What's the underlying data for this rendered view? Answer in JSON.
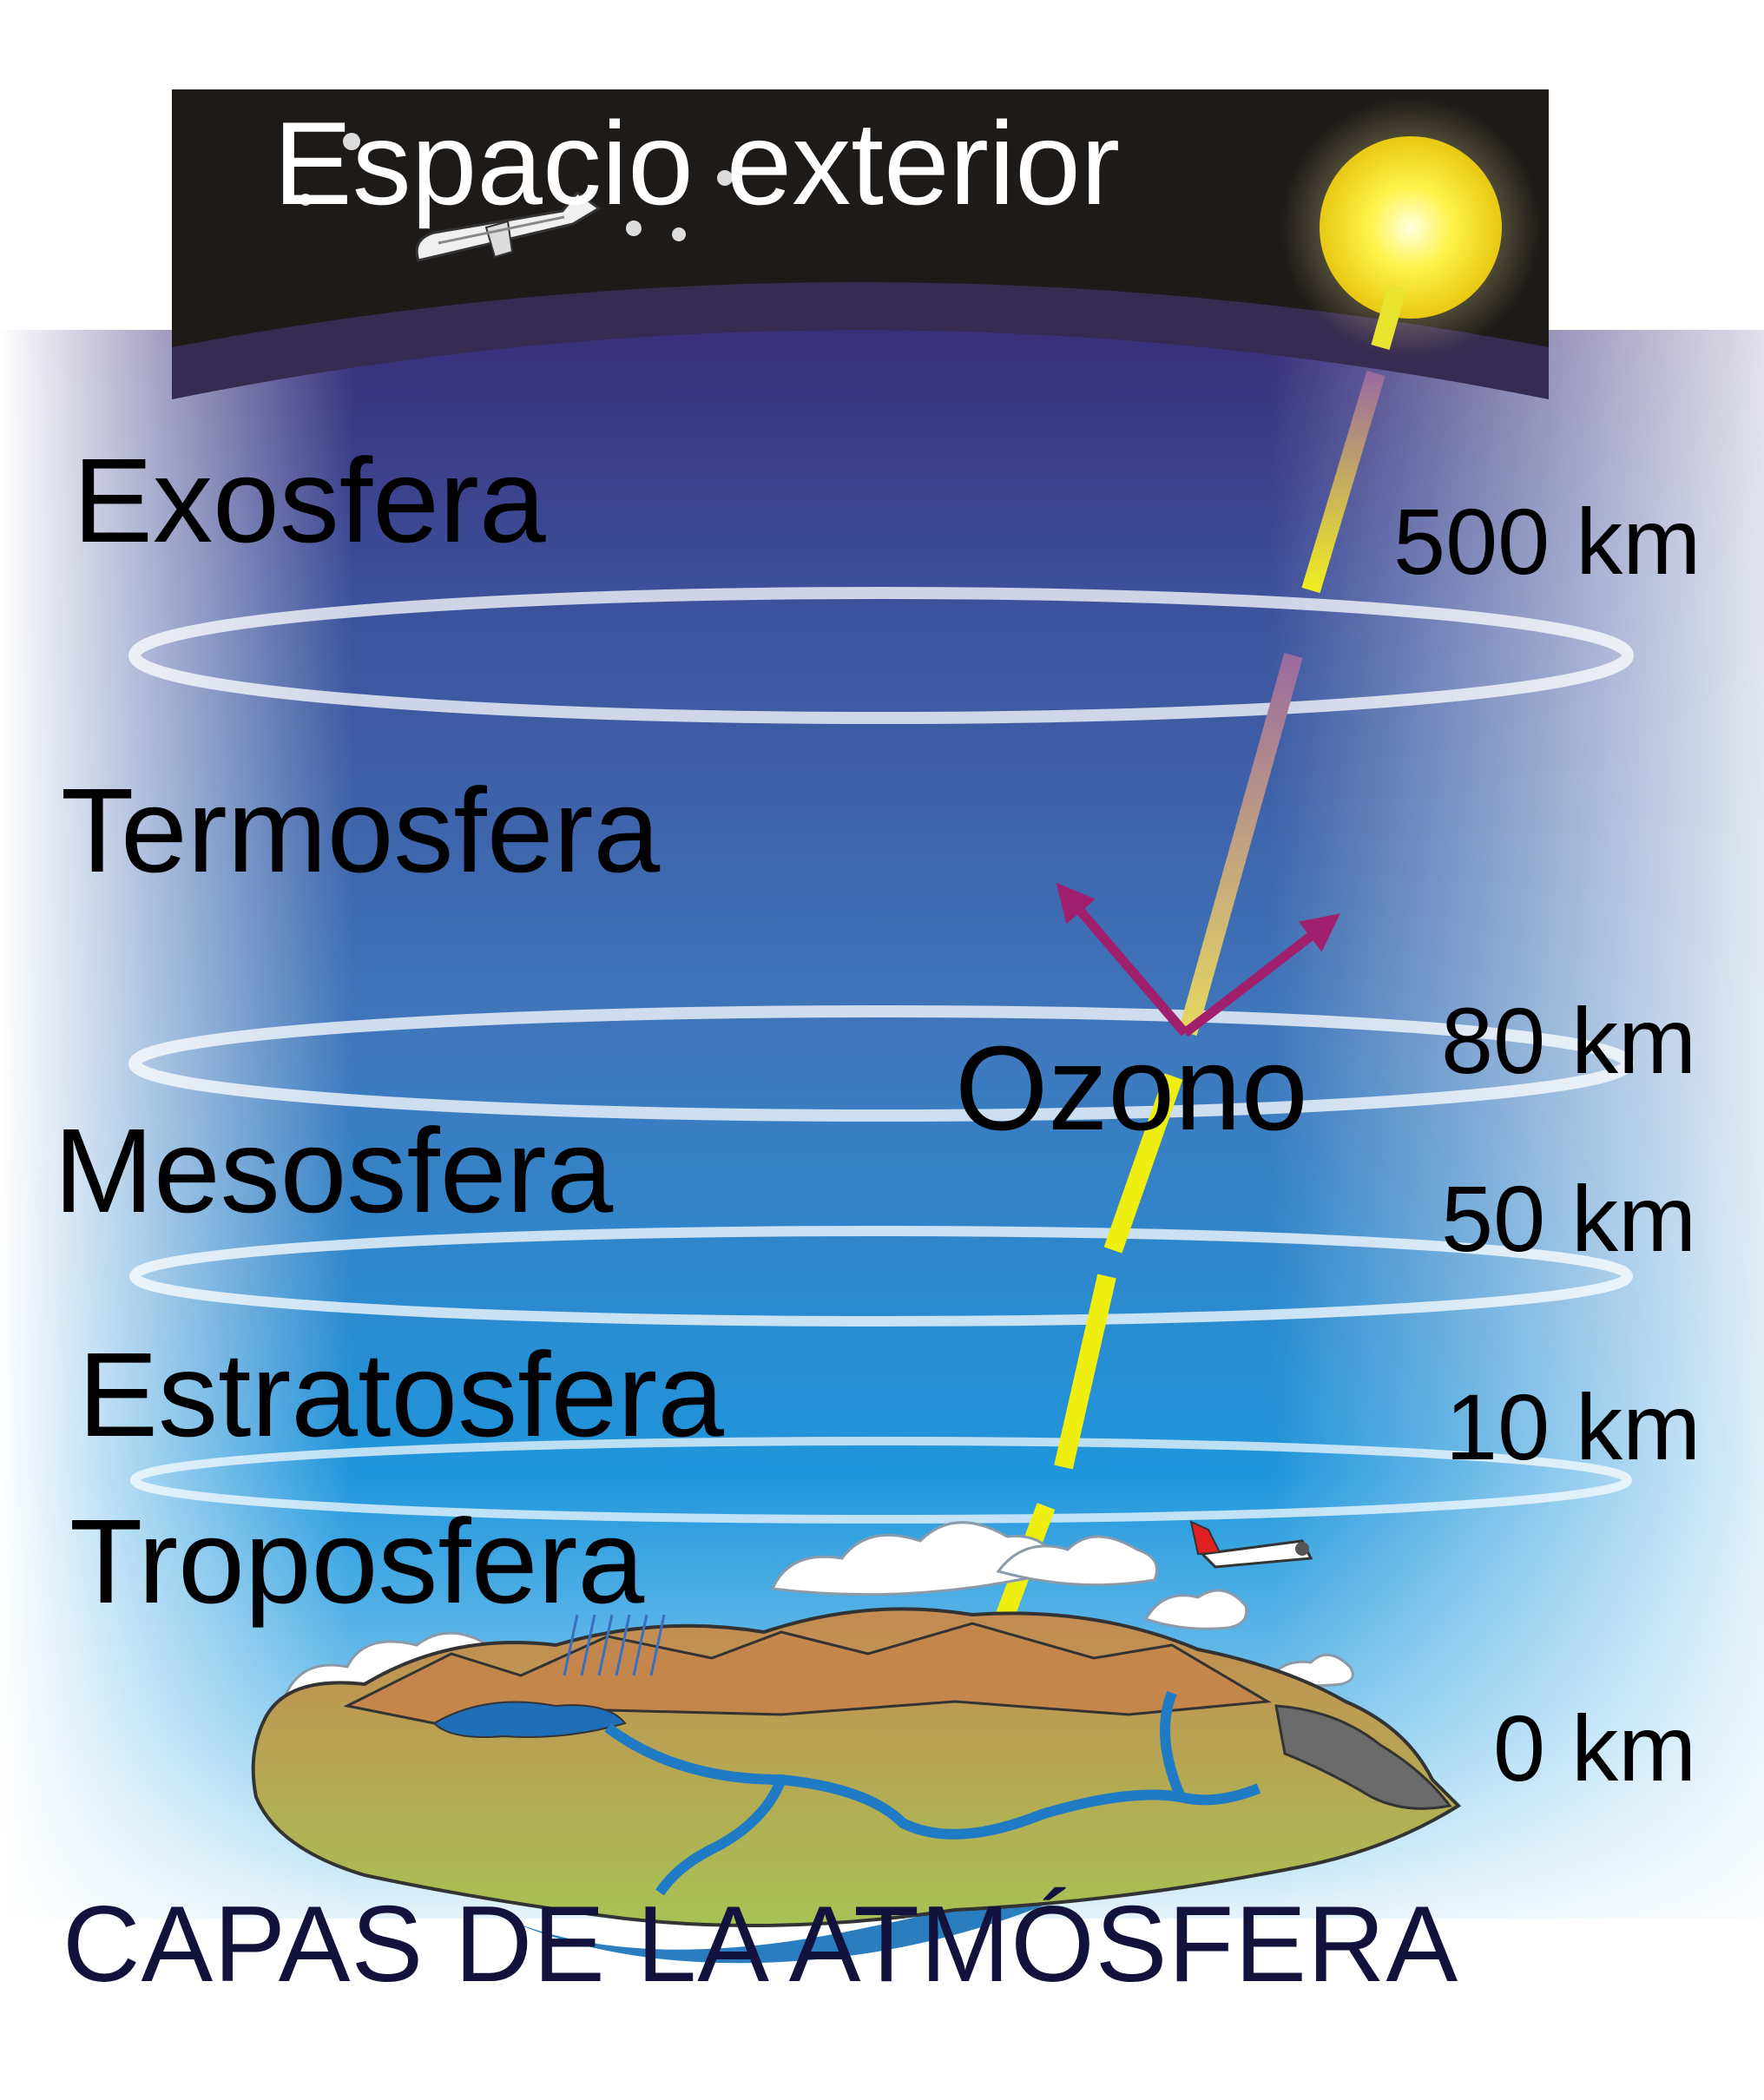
{
  "space": {
    "title": "Espacio exterior"
  },
  "layers": [
    {
      "name": "Exosfera"
    },
    {
      "name": "Termosfera"
    },
    {
      "name": "Mesosfera"
    },
    {
      "name": "Estratosfera"
    },
    {
      "name": "Troposfera"
    }
  ],
  "altitudes": [
    "500 km",
    "80 km",
    "50 km",
    "10 km",
    "0 km"
  ],
  "ozone": {
    "label": "Ozono"
  },
  "main_title": "CAPAS DE LA ATMÓSFERA",
  "colors": {
    "space": "#1e1a18",
    "sun": "#ffe830",
    "ray": "#eeee10",
    "ozone_arrows": "#a0206e",
    "title": "#12123c",
    "water": "#2a7ec0",
    "land": "#c08a50"
  }
}
